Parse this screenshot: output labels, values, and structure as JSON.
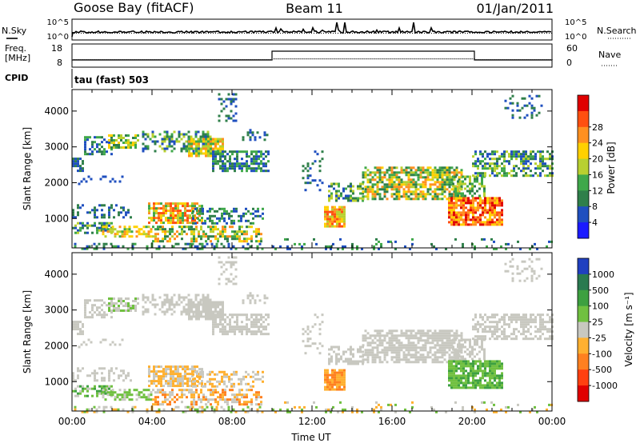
{
  "header": {
    "station": "Goose Bay (fitACF)",
    "beam": "Beam 11",
    "date": "01/Jan/2011"
  },
  "top_panels": {
    "nsky": {
      "label": "N.Sky",
      "right_label": "N.Search",
      "ticks_left": [
        "10^5",
        "10^0"
      ],
      "ticks_right": [
        "10^5",
        "10^0"
      ]
    },
    "freq": {
      "label_line1": "Freq.",
      "label_line2": "[MHz]",
      "right_label": "Nave",
      "ticks_left": [
        "18",
        "8"
      ],
      "ticks_right": [
        "60",
        "0"
      ]
    },
    "cpid": {
      "label": "CPID",
      "value": "tau (fast) 503"
    }
  },
  "chart_data": [
    {
      "type": "heatmap",
      "quantity": "power",
      "ylabel": "Slant Range [km]",
      "colorbar_label": "Power [dB]",
      "xlim": [
        0,
        24
      ],
      "ylim": [
        180,
        4600
      ],
      "yticks": [
        1000,
        2000,
        3000,
        4000
      ],
      "colorbar_ticks": [
        "4",
        "8",
        "12",
        "16",
        "20",
        "24",
        "28"
      ],
      "colorbar_colors": [
        "#1a1aff",
        "#1f4fbf",
        "#2f7f4a",
        "#3fa84a",
        "#b8d030",
        "#ffd000",
        "#ff9020",
        "#ff5010",
        "#e00000"
      ]
    },
    {
      "type": "heatmap",
      "quantity": "velocity",
      "ylabel": "Slant Range [km]",
      "colorbar_label": "Velocity [m s⁻¹]",
      "xlabel": "Time UT",
      "xlim": [
        0,
        24
      ],
      "ylim": [
        180,
        4600
      ],
      "yticks": [
        1000,
        2000,
        3000,
        4000
      ],
      "xticks": [
        "00:00",
        "04:00",
        "08:00",
        "12:00",
        "16:00",
        "20:00",
        "00:00"
      ],
      "colorbar_ticks": [
        "1000",
        "500",
        "100",
        "25",
        "-25",
        "-100",
        "-500",
        "-1000"
      ],
      "colorbar_colors": [
        "#2040c0",
        "#2a7a50",
        "#3da040",
        "#70c040",
        "#c8c8c0",
        "#ffb030",
        "#ff8020",
        "#ff4010",
        "#e00000"
      ]
    }
  ],
  "scatter_regions": [
    {
      "t0": 0.1,
      "t1": 9.5,
      "r0": 180,
      "r1": 320,
      "density": 0.35,
      "pidx": [
        1,
        2,
        3
      ],
      "vidx": [
        3,
        4,
        5
      ]
    },
    {
      "t0": 0.0,
      "t1": 0.6,
      "r0": 2300,
      "r1": 2700,
      "density": 0.6,
      "pidx": [
        1,
        2
      ],
      "vidx": [
        4
      ]
    },
    {
      "t0": 0.6,
      "t1": 2.0,
      "r0": 2800,
      "r1": 3300,
      "density": 0.4,
      "pidx": [
        1,
        2,
        3
      ],
      "vidx": [
        4
      ]
    },
    {
      "t0": 1.8,
      "t1": 3.3,
      "r0": 2950,
      "r1": 3350,
      "density": 0.65,
      "pidx": [
        2,
        3,
        4,
        5
      ],
      "vidx": [
        4,
        4,
        3
      ]
    },
    {
      "t0": 3.5,
      "t1": 7.0,
      "r0": 2850,
      "r1": 3450,
      "density": 0.5,
      "pidx": [
        1,
        2,
        3,
        4
      ],
      "vidx": [
        4
      ]
    },
    {
      "t0": 5.8,
      "t1": 7.5,
      "r0": 2750,
      "r1": 3250,
      "density": 0.8,
      "pidx": [
        3,
        4,
        5,
        6
      ],
      "vidx": [
        4
      ]
    },
    {
      "t0": 7.0,
      "t1": 9.8,
      "r0": 2350,
      "r1": 2900,
      "density": 0.6,
      "pidx": [
        1,
        2,
        3
      ],
      "vidx": [
        4
      ]
    },
    {
      "t0": 8.5,
      "t1": 9.8,
      "r0": 3200,
      "r1": 3500,
      "density": 0.25,
      "pidx": [
        1,
        2
      ],
      "vidx": [
        4
      ]
    },
    {
      "t0": 7.3,
      "t1": 8.2,
      "r0": 3700,
      "r1": 4500,
      "density": 0.35,
      "pidx": [
        1,
        2
      ],
      "vidx": [
        4
      ]
    },
    {
      "t0": 0.3,
      "t1": 2.5,
      "r0": 1900,
      "r1": 2200,
      "density": 0.12,
      "pidx": [
        1
      ],
      "vidx": [
        4
      ]
    },
    {
      "t0": 0.0,
      "t1": 2.0,
      "r0": 600,
      "r1": 900,
      "density": 0.55,
      "pidx": [
        1,
        2,
        3,
        4
      ],
      "vidx": [
        2,
        3,
        4
      ]
    },
    {
      "t0": 1.5,
      "t1": 4.0,
      "r0": 500,
      "r1": 800,
      "density": 0.6,
      "pidx": [
        3,
        4,
        5,
        6
      ],
      "vidx": [
        3,
        3,
        4
      ]
    },
    {
      "t0": 3.8,
      "t1": 6.5,
      "r0": 850,
      "r1": 1450,
      "density": 0.75,
      "pidx": [
        3,
        4,
        5,
        6,
        7
      ],
      "vidx": [
        4,
        5
      ]
    },
    {
      "t0": 4.0,
      "t1": 9.5,
      "r0": 350,
      "r1": 800,
      "density": 0.55,
      "pidx": [
        2,
        3,
        4,
        5,
        6
      ],
      "vidx": [
        4,
        5,
        6
      ]
    },
    {
      "t0": 6.0,
      "t1": 9.5,
      "r0": 850,
      "r1": 1300,
      "density": 0.45,
      "pidx": [
        1,
        2,
        3
      ],
      "vidx": [
        4,
        5
      ]
    },
    {
      "t0": 0.0,
      "t1": 3.0,
      "r0": 1050,
      "r1": 1400,
      "density": 0.3,
      "pidx": [
        1,
        2
      ],
      "vidx": [
        4
      ]
    },
    {
      "t0": 12.6,
      "t1": 13.6,
      "r0": 750,
      "r1": 1350,
      "density": 0.85,
      "pidx": [
        4,
        5,
        6,
        7
      ],
      "vidx": [
        5,
        6
      ]
    },
    {
      "t0": 12.8,
      "t1": 14.5,
      "r0": 1500,
      "r1": 2000,
      "density": 0.5,
      "pidx": [
        1,
        2,
        3,
        4
      ],
      "vidx": [
        4
      ]
    },
    {
      "t0": 14.5,
      "t1": 19.5,
      "r0": 1550,
      "r1": 2450,
      "density": 0.7,
      "pidx": [
        2,
        3,
        4,
        5,
        6
      ],
      "vidx": [
        4
      ]
    },
    {
      "t0": 18.8,
      "t1": 21.5,
      "r0": 800,
      "r1": 1600,
      "density": 0.8,
      "pidx": [
        5,
        6,
        7,
        8
      ],
      "vidx": [
        3,
        2,
        3
      ]
    },
    {
      "t0": 19.0,
      "t1": 20.6,
      "r0": 1600,
      "r1": 2200,
      "density": 0.55,
      "pidx": [
        2,
        3,
        4
      ],
      "vidx": [
        4
      ]
    },
    {
      "t0": 20.0,
      "t1": 24.0,
      "r0": 2200,
      "r1": 2900,
      "density": 0.6,
      "pidx": [
        1,
        2,
        3,
        4
      ],
      "vidx": [
        4
      ]
    },
    {
      "t0": 21.5,
      "t1": 23.5,
      "r0": 3800,
      "r1": 4450,
      "density": 0.25,
      "pidx": [
        1,
        2
      ],
      "vidx": [
        4
      ]
    },
    {
      "t0": 10.0,
      "t1": 24.0,
      "r0": 180,
      "r1": 450,
      "density": 0.12,
      "pidx": [
        1,
        2,
        3
      ],
      "vidx": [
        3,
        4,
        5
      ]
    },
    {
      "t0": 11.5,
      "t1": 12.5,
      "r0": 1800,
      "r1": 2900,
      "density": 0.2,
      "pidx": [
        1,
        2
      ],
      "vidx": [
        4
      ]
    }
  ]
}
